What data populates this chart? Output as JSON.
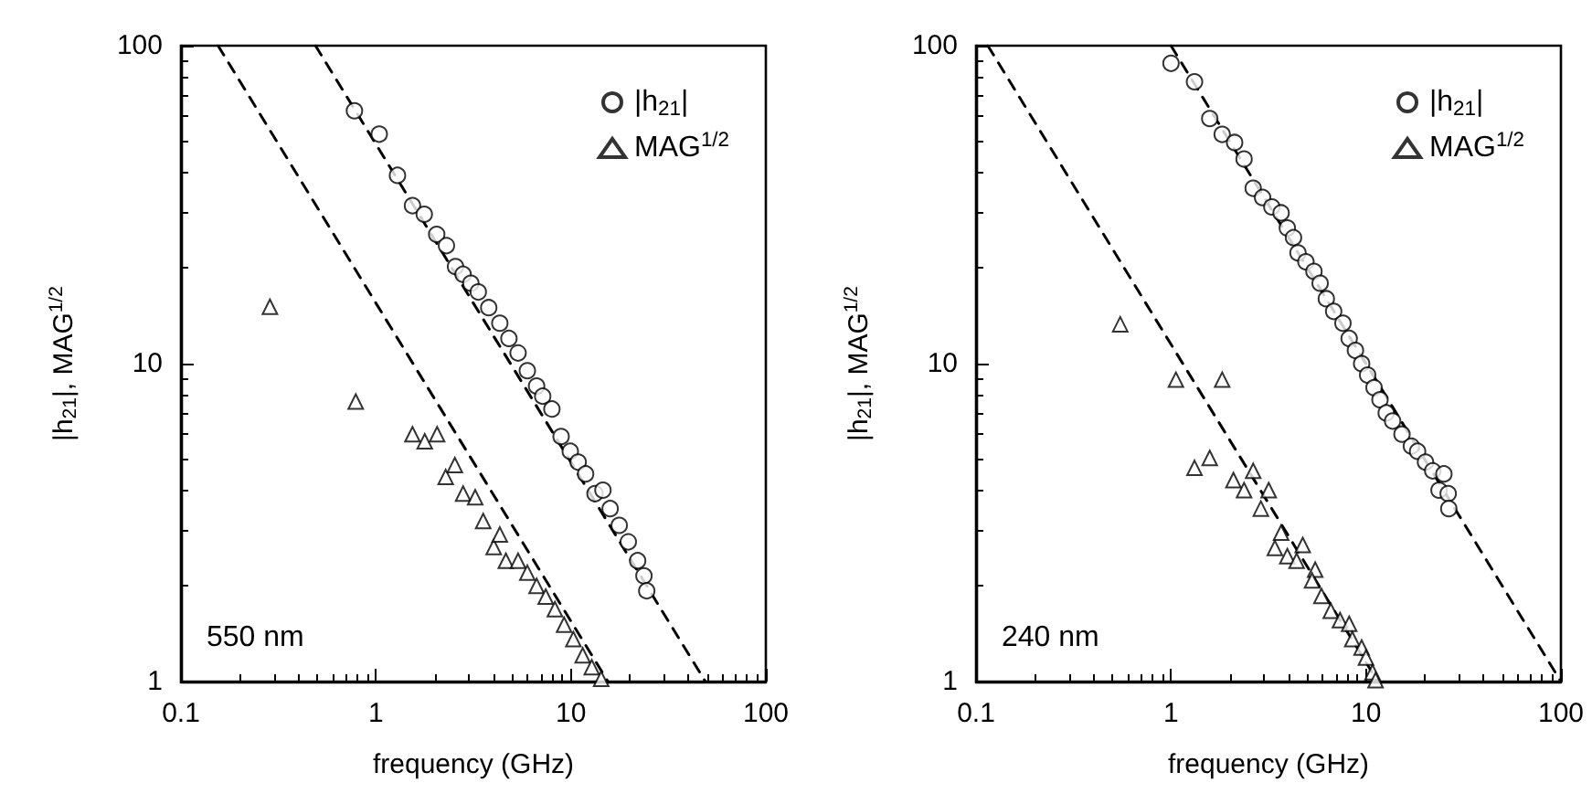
{
  "chart_data": [
    {
      "type": "scatter",
      "xlabel": "frequency (GHz)",
      "ylabel": "|h$_{21}$|, MAG$^{1/2}$",
      "log": "xy",
      "xlim": [
        0.1,
        100
      ],
      "ylim": [
        1,
        100
      ],
      "xticks": [
        0.1,
        1,
        10,
        100
      ],
      "yticks": [
        1,
        10,
        100
      ],
      "legend": "top right",
      "grid": false,
      "annotations": [
        "550 nm"
      ],
      "series": [
        {
          "name": "|h$_{21}$|",
          "color": "#000000",
          "marker": "circle",
          "x": [
            0.776,
            1.04,
            1.29,
            1.54,
            1.77,
            2.05,
            2.3,
            2.56,
            2.8,
            3.07,
            3.35,
            3.79,
            4.32,
            4.81,
            5.36,
            5.98,
            6.67,
            7.17,
            7.99,
            8.91,
            9.93,
            10.9,
            11.9,
            13.3,
            14.6,
            15.9,
            17.7,
            19.7,
            22.0,
            23.7,
            24.5
          ],
          "values": [
            62.4,
            52.7,
            39.1,
            31.4,
            29.5,
            25.5,
            23.5,
            20.2,
            19.1,
            17.9,
            16.8,
            15.0,
            13.4,
            12.0,
            10.8,
            9.5,
            8.5,
            7.9,
            7.2,
            5.9,
            5.3,
            4.9,
            4.5,
            3.9,
            4.0,
            3.5,
            3.1,
            2.75,
            2.4,
            2.15,
            1.93
          ]
        },
        {
          "name": "MAG$^{1/2}$",
          "color": "#000000",
          "marker": "triangle",
          "x": [
            0.286,
            0.788,
            1.54,
            1.78,
            2.06,
            2.28,
            2.54,
            2.8,
            3.23,
            3.55,
            4.02,
            4.32,
            4.64,
            5.36,
            5.98,
            6.67,
            7.43,
            8.28,
            9.23,
            10.3,
            11.5,
            12.8,
            14.3
          ],
          "values": [
            15.1,
            7.6,
            6.0,
            5.7,
            6.0,
            4.4,
            4.8,
            3.9,
            3.8,
            3.2,
            2.65,
            2.9,
            2.4,
            2.4,
            2.2,
            2.0,
            1.85,
            1.69,
            1.51,
            1.36,
            1.21,
            1.11,
            1.02
          ]
        },
        {
          "type": "line",
          "color": "#000000",
          "line_style": "dashed",
          "marker": "none",
          "x": [
            0.49,
            49
          ],
          "values": [
            100,
            1
          ]
        },
        {
          "type": "line",
          "color": "#000000",
          "line_style": "dashed",
          "marker": "none",
          "x": [
            0.155,
            15.5
          ],
          "values": [
            100,
            1
          ]
        }
      ]
    },
    {
      "type": "scatter",
      "xlabel": "frequency (GHz)",
      "ylabel": "|h$_{21}$|, MAG$^{1/2}$",
      "log": "xy",
      "xlim": [
        0.1,
        100
      ],
      "ylim": [
        1,
        100
      ],
      "xticks": [
        0.1,
        1,
        10,
        100
      ],
      "yticks": [
        1,
        10,
        100
      ],
      "legend": "top right",
      "grid": false,
      "annotations": [
        "240 nm"
      ],
      "series": [
        {
          "name": "|h$_{21}$|",
          "color": "#000000",
          "marker": "circle",
          "x": [
            1.0,
            1.32,
            1.58,
            1.83,
            2.12,
            2.37,
            2.64,
            2.95,
            3.29,
            3.67,
            3.95,
            4.25,
            4.48,
            4.92,
            5.41,
            5.82,
            6.26,
            6.83,
            7.62,
            8.2,
            8.83,
            9.5,
            10.2,
            11.0,
            11.8,
            12.7,
            13.7,
            15.3,
            17.1,
            18.4,
            20.2,
            22.0,
            23.7,
            25.1,
            26.4,
            26.6
          ],
          "values": [
            88,
            77,
            59,
            52.6,
            49.6,
            44,
            35.6,
            33.3,
            31.1,
            29.8,
            26.7,
            24.9,
            22.3,
            20.9,
            19.5,
            17.9,
            16.0,
            14.6,
            13.4,
            12.0,
            11.0,
            10.0,
            9.2,
            8.4,
            7.7,
            7.0,
            6.6,
            6.0,
            5.5,
            5.3,
            4.9,
            4.6,
            4.0,
            4.5,
            3.9,
            3.5
          ]
        },
        {
          "name": "MAG$^{1/2}$",
          "color": "#000000",
          "marker": "triangle",
          "x": [
            0.549,
            1.06,
            1.83,
            1.32,
            1.58,
            2.09,
            2.37,
            2.64,
            2.89,
            3.17,
            3.67,
            3.41,
            3.95,
            4.74,
            4.41,
            5.49,
            5.29,
            5.91,
            6.6,
            7.36,
            8.2,
            8.51,
            9.5,
            10.0,
            10.8,
            11.2
          ],
          "values": [
            13.3,
            8.9,
            8.9,
            4.7,
            5.05,
            4.3,
            4.0,
            4.6,
            3.5,
            4.0,
            2.94,
            2.63,
            2.48,
            2.69,
            2.4,
            2.25,
            2.08,
            1.86,
            1.67,
            1.56,
            1.52,
            1.36,
            1.28,
            1.19,
            1.07,
            1.01
          ]
        },
        {
          "type": "line",
          "color": "#000000",
          "line_style": "dashed",
          "marker": "none",
          "x": [
            1.0,
            100
          ],
          "values": [
            100,
            1
          ]
        },
        {
          "type": "line",
          "color": "#000000",
          "line_style": "dashed",
          "marker": "none",
          "x": [
            0.115,
            11.5
          ],
          "values": [
            100,
            1
          ]
        }
      ]
    }
  ]
}
